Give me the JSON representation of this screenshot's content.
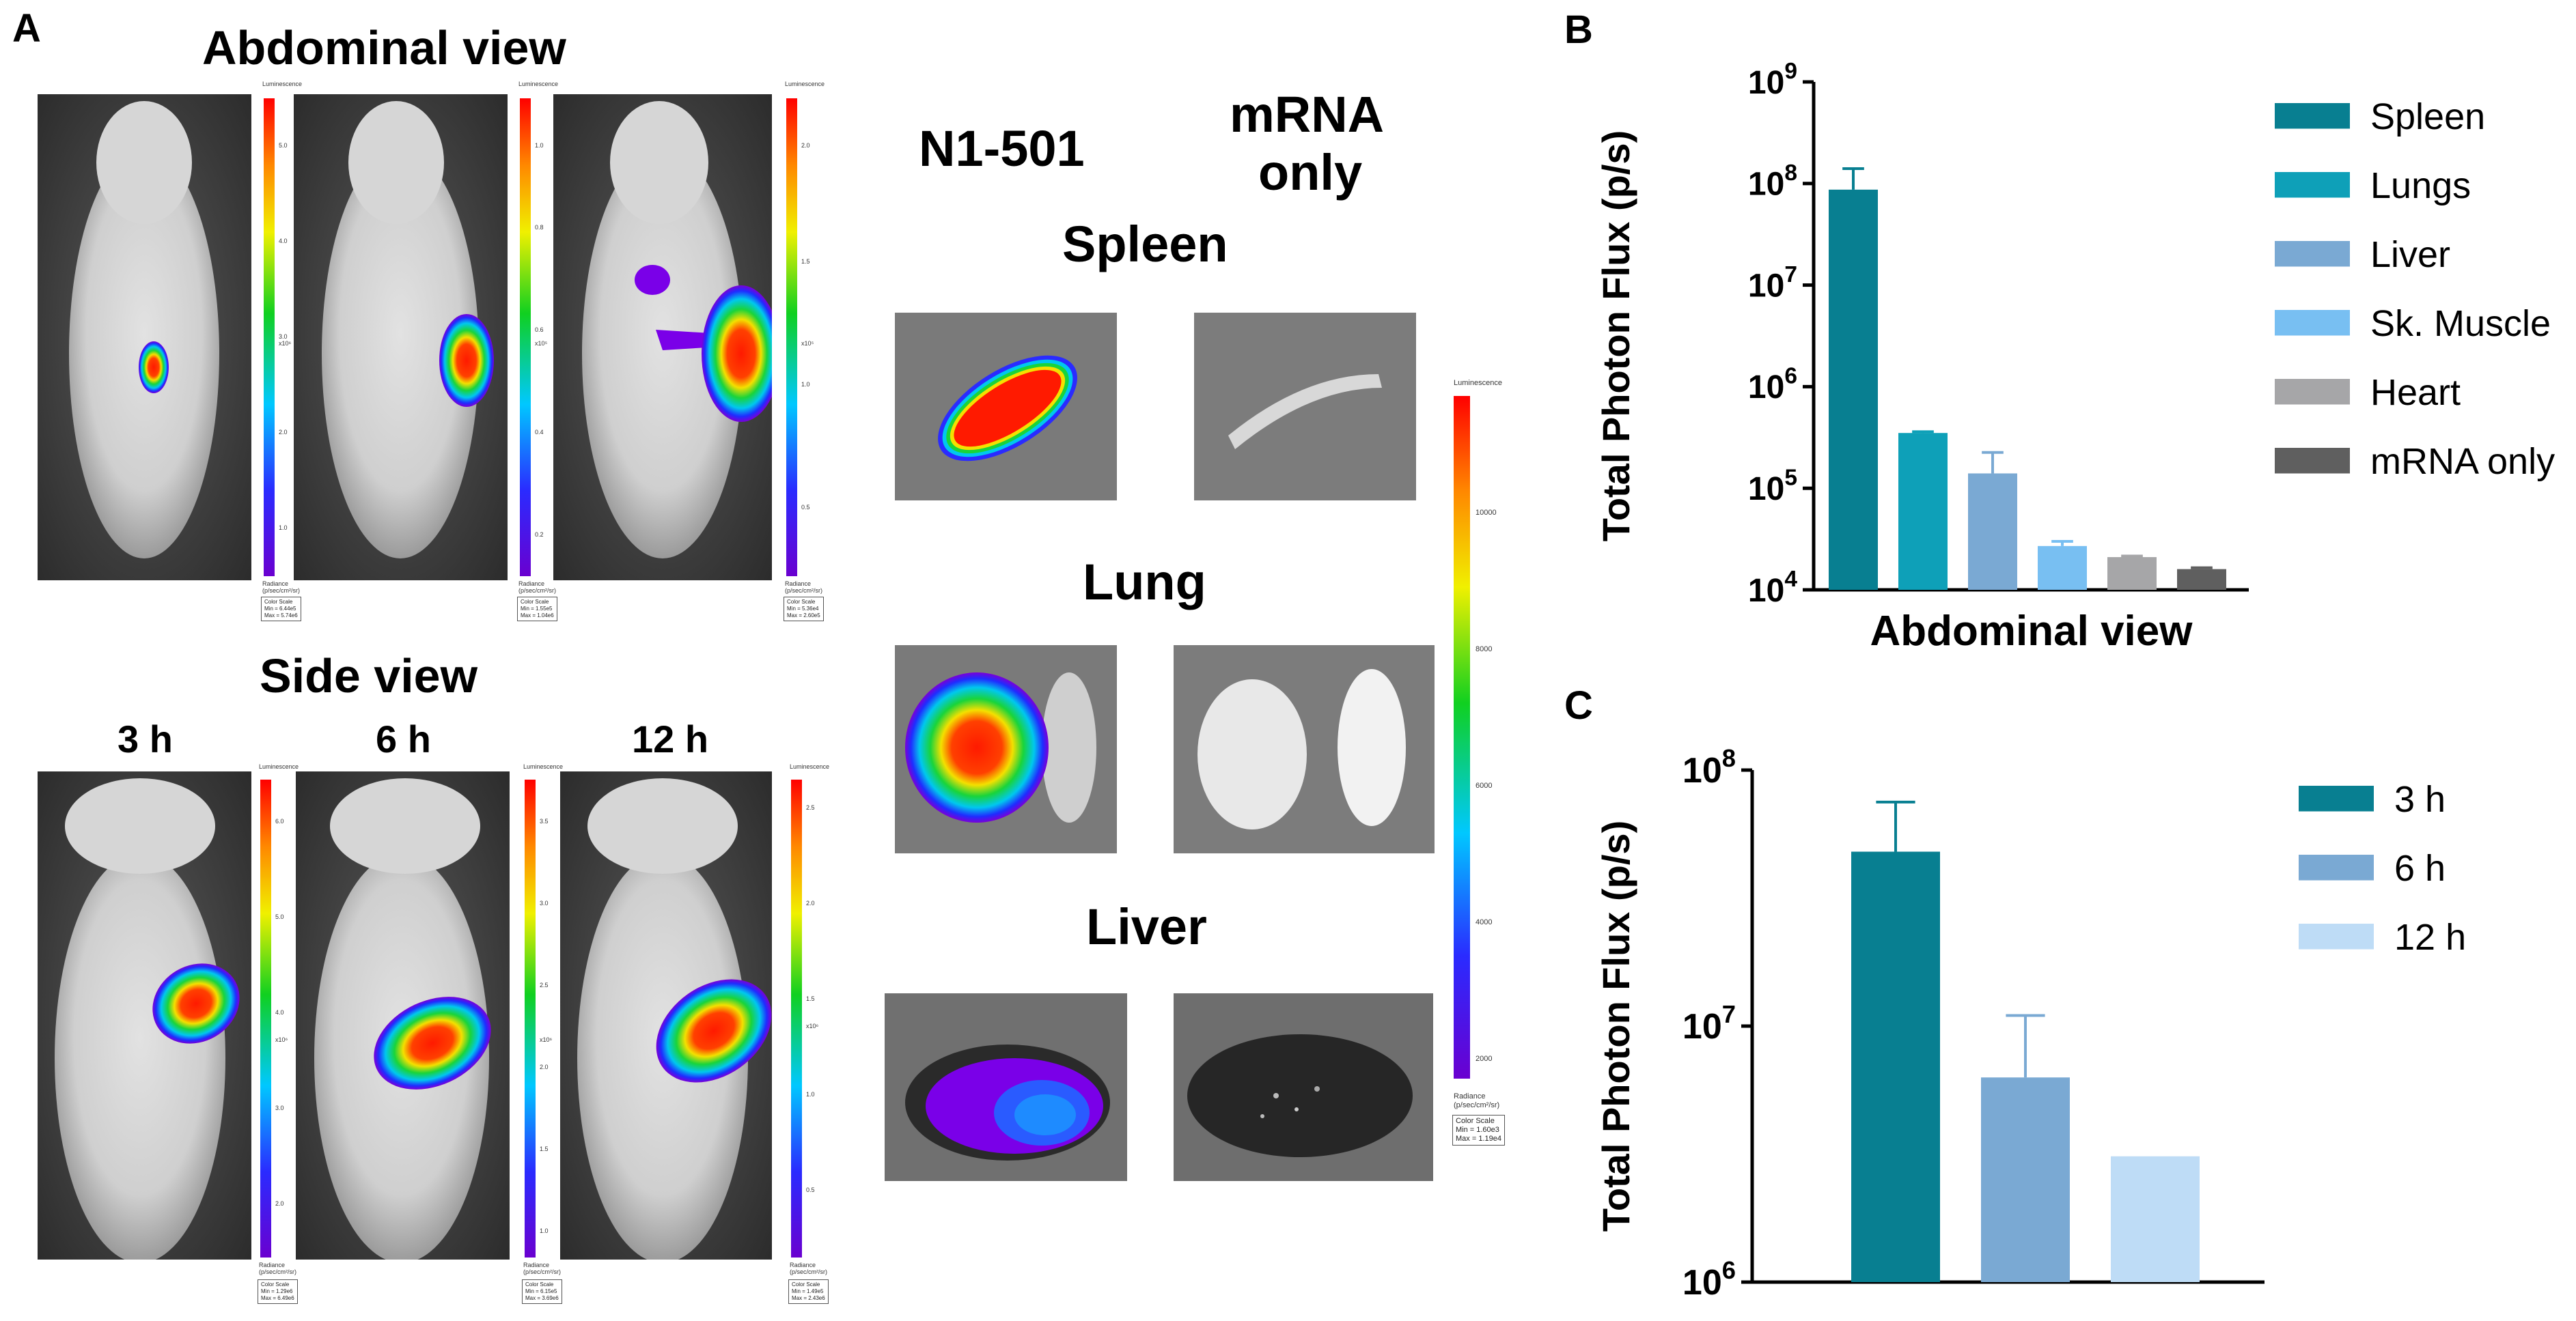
{
  "panel_a": {
    "letter": "A",
    "abdominal_title": "Abdominal view",
    "side_title": "Side view",
    "times": [
      "3 h",
      "6 h",
      "12 h"
    ],
    "scale_title": "Luminescence",
    "scale_unit": "Radiance",
    "scale_unit2": "(p/sec/cm²/sr)",
    "colorscale_label": "Color Scale",
    "abdominal_ranges": [
      {
        "min": "Min = 6.44e5",
        "max": "Max = 5.74e6"
      },
      {
        "min": "Min = 1.55e5",
        "max": "Max = 1.04e6"
      },
      {
        "min": "Min = 5.36e4",
        "max": "Max = 2.60e5"
      }
    ],
    "side_ranges": [
      {
        "min": "Min = 1.29e6",
        "max": "Max = 6.49e6"
      },
      {
        "min": "Min = 6.15e5",
        "max": "Max = 3.69e6"
      },
      {
        "min": "Min = 1.49e5",
        "max": "Max = 2.43e6"
      }
    ],
    "abdominal_ticks": [
      [
        "5.0",
        "4.0",
        "3.0",
        "2.0",
        "1.0"
      ],
      [
        "1.0",
        "0.8",
        "0.6",
        "0.4",
        "0.2"
      ],
      [
        "2.0",
        "1.5",
        "1.0",
        "0.5"
      ]
    ],
    "side_ticks": [
      [
        "6.0",
        "5.0",
        "4.0",
        "3.0",
        "2.0"
      ],
      [
        "3.5",
        "3.0",
        "2.5",
        "2.0",
        "1.5",
        "1.0"
      ],
      [
        "2.5",
        "2.0",
        "1.5",
        "1.0",
        "0.5"
      ]
    ],
    "abdominal_exp": [
      "x10⁶",
      "x10⁵",
      "x10⁵"
    ],
    "side_exp": [
      "x10⁶",
      "x10⁶",
      "x10⁶"
    ],
    "ex_vivo": {
      "col1": "N1-501",
      "col2_line1": "mRNA",
      "col2_line2": "only",
      "organs": [
        "Spleen",
        "Lung",
        "Liver"
      ],
      "scale_ticks": [
        "10000",
        "8000",
        "6000",
        "4000",
        "2000"
      ],
      "range": {
        "min": "Min = 1.60e3",
        "max": "Max = 1.19e4"
      }
    }
  },
  "chart_data": [
    {
      "panel": "B",
      "type": "bar",
      "title": "",
      "xlabel": "Abdominal view",
      "ylabel": "Total  Photon Flux (p/s)",
      "yscale": "log",
      "ylim": [
        10000,
        1000000000
      ],
      "yticks": [
        {
          "value": 10000,
          "base": "10",
          "exp": "4"
        },
        {
          "value": 100000,
          "base": "10",
          "exp": "5"
        },
        {
          "value": 1000000,
          "base": "10",
          "exp": "6"
        },
        {
          "value": 10000000,
          "base": "10",
          "exp": "7"
        },
        {
          "value": 100000000,
          "base": "10",
          "exp": "8"
        },
        {
          "value": 1000000000,
          "base": "10",
          "exp": "9"
        }
      ],
      "categories": [
        "Spleen",
        "Lungs",
        "Liver",
        "Sk. Muscle",
        "Heart",
        "mRNA only"
      ],
      "values": [
        87000000,
        350000,
        140000,
        27000,
        21000,
        16000
      ],
      "errors_upper": [
        140000000,
        360000,
        225000,
        30000,
        21500,
        16500
      ],
      "colors": [
        "#087f91",
        "#0ea0b8",
        "#7aa9d3",
        "#78bff2",
        "#a6a6a8",
        "#5f5f5f"
      ],
      "legend": [
        "Spleen",
        "Lungs",
        "Liver",
        "Sk. Muscle",
        "Heart",
        "mRNA only"
      ]
    },
    {
      "panel": "C",
      "type": "bar",
      "title": "",
      "xlabel": "",
      "ylabel": "Total  Photon Flux (p/s)",
      "yscale": "log",
      "ylim": [
        1000000,
        100000000
      ],
      "yticks": [
        {
          "value": 1000000,
          "base": "10",
          "exp": "6"
        },
        {
          "value": 10000000,
          "base": "10",
          "exp": "7"
        },
        {
          "value": 100000000,
          "base": "10",
          "exp": "8"
        }
      ],
      "categories": [
        "3 h",
        "6 h",
        "12 h"
      ],
      "values": [
        48000000,
        6300000,
        3100000
      ],
      "errors_upper": [
        75000000,
        11000000,
        3100000
      ],
      "colors": [
        "#087f91",
        "#7aa9d3",
        "#bedcf6"
      ],
      "legend": [
        "3 h",
        "6 h",
        "12 h"
      ]
    }
  ]
}
